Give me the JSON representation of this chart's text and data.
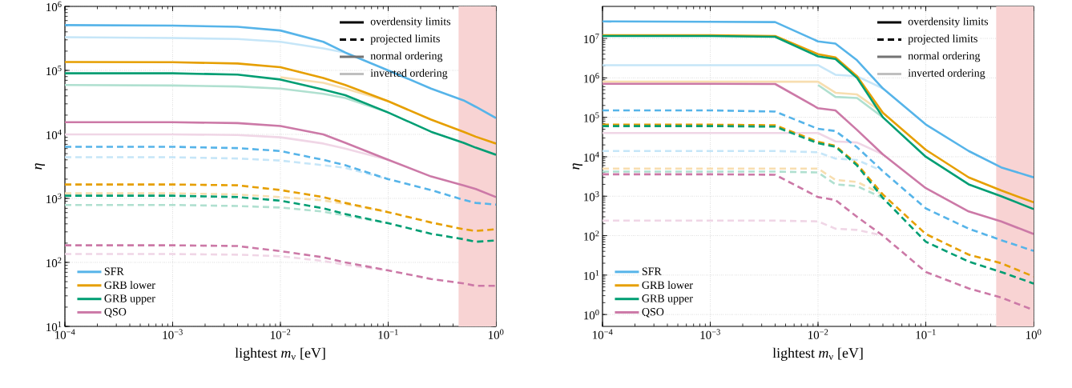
{
  "chart_data": [
    {
      "type": "line",
      "xlabel": "lightest *m*$_{ν}$ [eV]",
      "ylabel": "*η*",
      "log": "xy",
      "grid": true,
      "legend": "bottom left",
      "xlim": [
        0.0001,
        1
      ],
      "ylim": [
        10,
        1000000
      ],
      "xticks": [
        {
          "value": 0.0001,
          "label": "10$^{−4}$"
        },
        {
          "value": 0.001,
          "label": "10$^{−3}$"
        },
        {
          "value": 0.01,
          "label": "10$^{−2}$"
        },
        {
          "value": 0.1,
          "label": "10$^{−1}$"
        },
        {
          "value": 1,
          "label": "10$^{0}$"
        }
      ],
      "yticks": [
        {
          "value": 10,
          "label": "10$^{1}$"
        },
        {
          "value": 100,
          "label": "10$^{2}$"
        },
        {
          "value": 1000,
          "label": "10$^{3}$"
        },
        {
          "value": 10000,
          "label": "10$^{4}$"
        },
        {
          "value": 100000,
          "label": "10$^{5}$"
        },
        {
          "value": 1000000,
          "label": "10$^{6}$"
        }
      ],
      "bands": [
        {
          "axis": "x",
          "from": 0.45,
          "to": 1,
          "color": "#f8d3d3"
        }
      ],
      "annotations": [
        "overdensity limits",
        "projected limits",
        "normal ordering",
        "inverted ordering"
      ],
      "x": [
        0.0001,
        0.001,
        0.004,
        0.01,
        0.025,
        0.04,
        0.1,
        0.25,
        0.5,
        0.65,
        1
      ],
      "series": [
        {
          "color": "#c6e6f8",
          "line_style": "solid",
          "values": [
            330000,
            320000,
            310000,
            280000,
            220000,
            190000,
            null,
            null,
            null,
            null,
            null
          ]
        },
        {
          "color": "#f7deb0",
          "line_style": "solid",
          "values": [
            null,
            null,
            null,
            78000,
            64000,
            52000,
            33000,
            null,
            null,
            null,
            null
          ]
        },
        {
          "color": "#b0e0d0",
          "line_style": "solid",
          "values": [
            59000,
            58000,
            56000,
            52000,
            43000,
            37000,
            22000,
            null,
            null,
            null,
            null
          ]
        },
        {
          "color": "#f0d6e6",
          "line_style": "solid",
          "values": [
            10000,
            10000,
            9800,
            9000,
            7200,
            6000,
            4000,
            null,
            null,
            null,
            null
          ]
        },
        {
          "color": "#c6e6f8",
          "line_style": "dashed",
          "values": [
            4400,
            4400,
            4200,
            3900,
            3300,
            3000,
            2000,
            null,
            null,
            null,
            null
          ]
        },
        {
          "color": "#f7deb0",
          "line_style": "dashed",
          "values": [
            1200,
            1200,
            1150,
            1050,
            930,
            820,
            610,
            null,
            null,
            null,
            null
          ]
        },
        {
          "color": "#b0e0d0",
          "line_style": "dashed",
          "values": [
            790,
            790,
            760,
            720,
            620,
            540,
            410,
            null,
            null,
            null,
            null
          ]
        },
        {
          "color": "#f0d6e6",
          "line_style": "dashed",
          "values": [
            135,
            135,
            132,
            125,
            105,
            92,
            75,
            null,
            null,
            null,
            null
          ]
        },
        {
          "color": "#56b4e9",
          "line_style": "dashed",
          "values": [
            6400,
            6400,
            6100,
            5500,
            4000,
            3300,
            2000,
            1350,
            950,
            850,
            800
          ]
        },
        {
          "color": "#e69f00",
          "line_style": "dashed",
          "values": [
            1650,
            1650,
            1600,
            1350,
            1050,
            850,
            610,
            420,
            330,
            310,
            330
          ]
        },
        {
          "color": "#009e73",
          "line_style": "dashed",
          "values": [
            1100,
            1100,
            1050,
            920,
            700,
            570,
            410,
            280,
            230,
            210,
            220
          ]
        },
        {
          "color": "#cc79a7",
          "line_style": "dashed",
          "values": [
            185,
            185,
            180,
            150,
            120,
            100,
            75,
            55,
            47,
            43,
            43
          ]
        },
        {
          "name": "SFR",
          "color": "#56b4e9",
          "line_style": "solid",
          "values": [
            510000,
            500000,
            480000,
            420000,
            280000,
            190000,
            100000,
            52000,
            34000,
            27000,
            18000
          ]
        },
        {
          "name": "GRB lower",
          "color": "#e69f00",
          "line_style": "solid",
          "values": [
            135000,
            134000,
            128000,
            112000,
            76000,
            59000,
            33000,
            17000,
            11000,
            9200,
            7200
          ]
        },
        {
          "name": "GRB upper",
          "color": "#009e73",
          "line_style": "solid",
          "values": [
            90000,
            90000,
            86000,
            72000,
            50000,
            41000,
            22000,
            11000,
            7400,
            6200,
            4800
          ]
        },
        {
          "name": "QSO",
          "color": "#cc79a7",
          "line_style": "solid",
          "values": [
            15500,
            15500,
            15000,
            13500,
            10000,
            7400,
            4000,
            2200,
            1600,
            1400,
            1050
          ]
        }
      ]
    },
    {
      "type": "line",
      "xlabel": "lightest *m*$_{ν}$ [eV]",
      "ylabel": "*η*",
      "log": "xy",
      "grid": true,
      "legend": "bottom left",
      "xlim": [
        0.0001,
        1
      ],
      "ylim": [
        0.5,
        65000000
      ],
      "xticks": [
        {
          "value": 0.0001,
          "label": "10$^{−4}$"
        },
        {
          "value": 0.001,
          "label": "10$^{−3}$"
        },
        {
          "value": 0.01,
          "label": "10$^{−2}$"
        },
        {
          "value": 0.1,
          "label": "10$^{−1}$"
        },
        {
          "value": 1,
          "label": "10$^{0}$"
        }
      ],
      "yticks": [
        {
          "value": 1,
          "label": "10$^{0}$"
        },
        {
          "value": 10,
          "label": "10$^{1}$"
        },
        {
          "value": 100,
          "label": "10$^{2}$"
        },
        {
          "value": 1000,
          "label": "10$^{3}$"
        },
        {
          "value": 10000,
          "label": "10$^{4}$"
        },
        {
          "value": 100000,
          "label": "10$^{5}$"
        },
        {
          "value": 1000000,
          "label": "10$^{6}$"
        },
        {
          "value": 10000000,
          "label": "10$^{7}$"
        }
      ],
      "bands": [
        {
          "axis": "x",
          "from": 0.45,
          "to": 1,
          "color": "#f8d3d3"
        }
      ],
      "annotations": [
        "overdensity limits",
        "projected limits",
        "normal ordering",
        "inverted ordering"
      ],
      "x": [
        0.0001,
        0.001,
        0.004,
        0.01,
        0.0145,
        0.023,
        0.04,
        0.1,
        0.25,
        0.5,
        1
      ],
      "series": [
        {
          "color": "#c6e6f8",
          "line_style": "solid",
          "values": [
            2100000,
            2100000,
            2100000,
            2100000,
            1200000,
            1100000,
            540000,
            null,
            null,
            null,
            null
          ]
        },
        {
          "color": "#f7deb0",
          "line_style": "solid",
          "values": [
            800000,
            800000,
            800000,
            800000,
            420000,
            380000,
            130000,
            null,
            null,
            null,
            null
          ]
        },
        {
          "color": "#b0e0d0",
          "line_style": "solid",
          "values": [
            null,
            null,
            null,
            660000,
            330000,
            310000,
            100000,
            null,
            null,
            null,
            null
          ]
        },
        {
          "color": "#f0d6e6",
          "line_style": "solid",
          "values": [
            40000,
            40000,
            40000,
            40000,
            24500,
            23000,
            11500,
            null,
            null,
            null,
            null
          ]
        },
        {
          "color": "#c6e6f8",
          "line_style": "dashed",
          "values": [
            14000,
            14000,
            14000,
            13000,
            9000,
            8300,
            4300,
            null,
            null,
            null,
            null
          ]
        },
        {
          "color": "#f7deb0",
          "line_style": "dashed",
          "values": [
            5000,
            5000,
            5000,
            5000,
            2600,
            2300,
            1100,
            null,
            null,
            null,
            null
          ]
        },
        {
          "color": "#b0e0d0",
          "line_style": "dashed",
          "values": [
            4200,
            4200,
            4200,
            4000,
            2000,
            1800,
            900,
            null,
            null,
            null,
            null
          ]
        },
        {
          "color": "#f0d6e6",
          "line_style": "dashed",
          "values": [
            240,
            240,
            240,
            230,
            150,
            140,
            100,
            null,
            null,
            null,
            null
          ]
        },
        {
          "color": "#56b4e9",
          "line_style": "dashed",
          "values": [
            150000,
            150000,
            140000,
            51000,
            45000,
            17500,
            4300,
            490,
            150,
            77,
            41
          ]
        },
        {
          "color": "#e69f00",
          "line_style": "dashed",
          "values": [
            65000,
            65000,
            63000,
            24000,
            19000,
            6500,
            1100,
            110,
            33,
            20,
            9.2
          ]
        },
        {
          "color": "#009e73",
          "line_style": "dashed",
          "values": [
            60000,
            60000,
            58000,
            22000,
            18000,
            6000,
            900,
            70,
            22,
            12,
            6.1
          ]
        },
        {
          "color": "#cc79a7",
          "line_style": "dashed",
          "values": [
            3600,
            3600,
            3500,
            950,
            800,
            300,
            100,
            12,
            4.6,
            2.7,
            1.3
          ]
        },
        {
          "name": "SFR",
          "color": "#56b4e9",
          "line_style": "solid",
          "values": [
            27000000,
            26500000,
            26000000,
            8400000,
            7400000,
            2800000,
            540000,
            66000,
            14000,
            5400,
            3000
          ]
        },
        {
          "name": "GRB lower",
          "color": "#e69f00",
          "line_style": "solid",
          "values": [
            12000000,
            12000000,
            11500000,
            4000000,
            3300000,
            1100000,
            130000,
            15000,
            3000,
            1400,
            700
          ]
        },
        {
          "name": "GRB upper",
          "color": "#009e73",
          "line_style": "solid",
          "values": [
            11500000,
            11500000,
            11000000,
            3500000,
            3000000,
            1000000,
            100000,
            10000,
            2000,
            1000,
            470
          ]
        },
        {
          "name": "QSO",
          "color": "#cc79a7",
          "line_style": "solid",
          "values": [
            710000,
            710000,
            700000,
            170000,
            150000,
            48000,
            11500,
            1600,
            410,
            230,
            110
          ]
        }
      ]
    }
  ]
}
